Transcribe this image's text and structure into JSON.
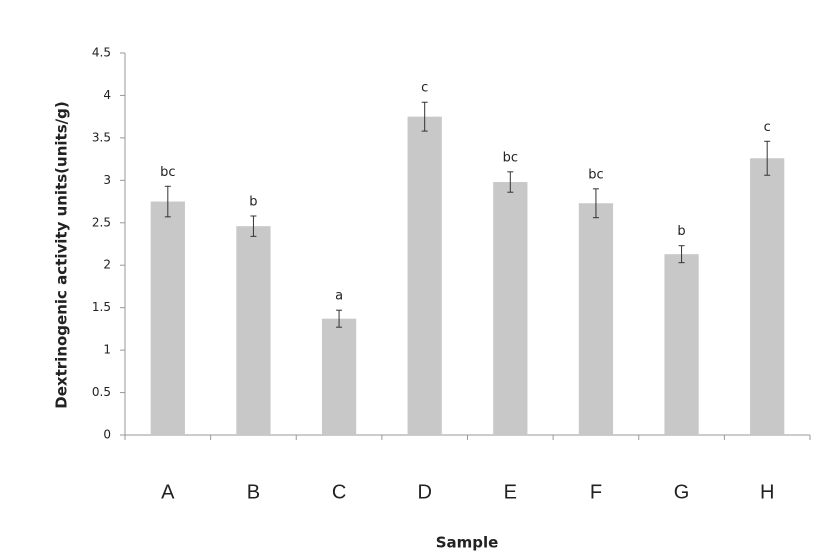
{
  "chart_data": {
    "type": "bar",
    "xlabel": "Sample",
    "ylabel": "Dextrinogenic activity units(units/g)",
    "categories": [
      "A",
      "B",
      "C",
      "D",
      "E",
      "F",
      "G",
      "H"
    ],
    "values": [
      2.75,
      2.46,
      1.37,
      3.75,
      2.98,
      2.73,
      2.13,
      3.26
    ],
    "errors": [
      0.18,
      0.12,
      0.1,
      0.17,
      0.12,
      0.17,
      0.1,
      0.2
    ],
    "annotations": [
      "bc",
      "b",
      "a",
      "c",
      "bc",
      "bc",
      "b",
      "c"
    ],
    "color": "#c8c8c8",
    "ylim": [
      0,
      4.5
    ],
    "yticks": [
      0,
      0.5,
      1,
      1.5,
      2,
      2.5,
      3,
      3.5,
      4,
      4.5
    ],
    "grid": false
  }
}
